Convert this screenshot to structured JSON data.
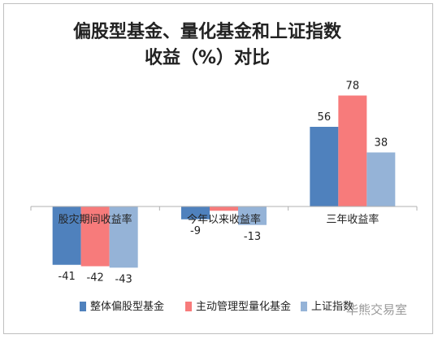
{
  "chart_data": {
    "type": "bar",
    "title_lines": [
      "偏股型基金、量化基金和上证指数",
      "收益（%）对比"
    ],
    "categories": [
      "股灾期间收益率",
      "今年以来收益率",
      "三年收益率"
    ],
    "series": [
      {
        "name": "整体偏股型基金",
        "values": [
          -41,
          -9,
          56
        ],
        "color": "#4f81bd"
      },
      {
        "name": "主动管理型量化基金",
        "values": [
          -42,
          -3,
          78
        ],
        "color": "#f77b7b"
      },
      {
        "name": "上证指数",
        "values": [
          -43,
          -13,
          38
        ],
        "color": "#95b3d7"
      }
    ],
    "data_labels": [
      [
        "-41",
        "-9",
        "56"
      ],
      [
        "-42",
        "",
        "78"
      ],
      [
        "-43",
        "-13",
        "38"
      ]
    ],
    "ylim": [
      -55,
      100
    ],
    "grid": false,
    "legend_position": "bottom"
  },
  "watermark": "华熊交易室"
}
